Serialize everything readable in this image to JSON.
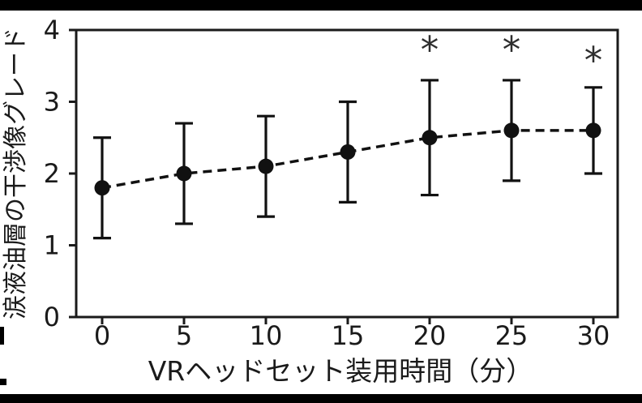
{
  "chart_data": {
    "type": "line",
    "title": "",
    "xlabel": "VRヘッドセット装用時間（分）",
    "ylabel": "涙液油層の干渉像グレード",
    "x": [
      0,
      5,
      10,
      15,
      20,
      25,
      30
    ],
    "series": [
      {
        "name": "",
        "values": [
          1.8,
          2.0,
          2.1,
          2.3,
          2.5,
          2.6,
          2.6
        ],
        "err_upper": [
          2.5,
          2.7,
          2.8,
          3.0,
          3.3,
          3.3,
          3.2
        ],
        "err_lower": [
          1.1,
          1.3,
          1.4,
          1.6,
          1.7,
          1.9,
          2.0
        ]
      }
    ],
    "xticks": [
      0,
      5,
      10,
      15,
      20,
      25,
      30
    ],
    "yticks": [
      0,
      1,
      2,
      3,
      4
    ],
    "xtick_labels": [
      "0",
      "5",
      "10",
      "15",
      "20",
      "25",
      "30"
    ],
    "ytick_labels": [
      "0",
      "1",
      "2",
      "3",
      "4"
    ],
    "ylim": [
      0,
      4
    ],
    "xlim": [
      -1.6,
      31.5
    ],
    "grid": false,
    "legend": "none",
    "line_style": "dashed",
    "marker": "circle-filled",
    "annotations": [
      {
        "x": 20,
        "y": 3.82,
        "text": "*"
      },
      {
        "x": 25,
        "y": 3.82,
        "text": "*"
      },
      {
        "x": 30,
        "y": 3.67,
        "text": "*"
      }
    ],
    "colors": {
      "line": "#111111",
      "marker": "#111111",
      "error_bar": "#111111",
      "axis": "#1a1a1a",
      "tick_text": "#1a1a1a",
      "annotation": "#2e2e2e",
      "background": "#ffffff",
      "crop_artifact": "#000000"
    }
  }
}
